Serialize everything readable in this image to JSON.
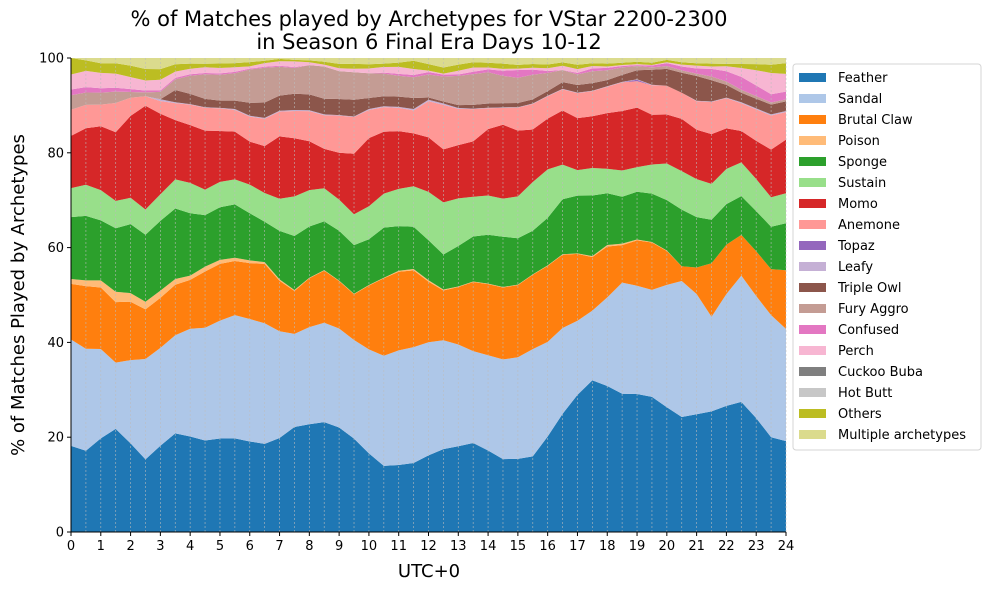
{
  "chart_data": {
    "type": "area",
    "title_line1": "% of Matches played by Archetypes for VStar 2200-2300",
    "title_line2": "in Season 6 Final Era Days 10-12",
    "xlabel": "UTC+0",
    "ylabel": "% of Matches Played by Archetypes",
    "xlim": [
      0,
      24
    ],
    "ylim": [
      0,
      100
    ],
    "x_ticks": [
      0,
      1,
      2,
      3,
      4,
      5,
      6,
      7,
      8,
      9,
      10,
      11,
      12,
      13,
      14,
      15,
      16,
      17,
      18,
      19,
      20,
      21,
      22,
      23,
      24
    ],
    "y_ticks": [
      0,
      20,
      40,
      60,
      80,
      100
    ],
    "grid": "vertical dotted",
    "legend_position": "right",
    "x": [
      0,
      0.5,
      1,
      1.5,
      2,
      2.5,
      3,
      3.5,
      4,
      4.5,
      5,
      5.5,
      6,
      6.5,
      7,
      7.5,
      8,
      8.5,
      9,
      9.5,
      10,
      10.5,
      11,
      11.5,
      12,
      12.5,
      13,
      13.5,
      14,
      14.5,
      15,
      15.5,
      16,
      16.5,
      17,
      17.5,
      18,
      18.5,
      19,
      19.5,
      20,
      20.5,
      21,
      21.5,
      22,
      22.5,
      23,
      23.5,
      24
    ],
    "series": [
      {
        "name": "Feather",
        "color": "#1f77b4",
        "values": [
          17.8,
          17,
          19.5,
          21.8,
          18.5,
          15.2,
          17.8,
          20.3,
          20.5,
          20.8,
          20.6,
          20.2,
          19.6,
          19,
          20.5,
          22,
          22.5,
          23.2,
          21.4,
          19,
          16.5,
          14,
          14.4,
          15,
          16.3,
          17.5,
          18.2,
          18.8,
          17.2,
          15.5,
          15.9,
          16.3,
          20.5,
          24.5,
          28.5,
          32,
          31,
          29.5,
          29.2,
          28.8,
          26.5,
          24.2,
          24.8,
          25.5,
          25.8,
          26.2,
          22.4,
          18.3,
          17.8
        ]
      },
      {
        "name": "Sandal",
        "color": "#aec7e8",
        "values": [
          22,
          21.3,
          18.6,
          14,
          17.4,
          21,
          20.2,
          20.2,
          23.1,
          25.6,
          26,
          26.6,
          26.5,
          26,
          23.3,
          19.5,
          20.3,
          21,
          20.3,
          20.1,
          21.8,
          23.3,
          24.6,
          25.2,
          24.1,
          23,
          21.6,
          19.4,
          20.1,
          21.2,
          22.1,
          23.1,
          20.3,
          17.8,
          15.4,
          14.7,
          18.8,
          23.7,
          22.9,
          22.8,
          26,
          28.6,
          25.3,
          20,
          22.9,
          25.4,
          24,
          23.6,
          22
        ]
      },
      {
        "name": "Brutal Claw",
        "color": "#ff7f0e",
        "values": [
          11.5,
          13.1,
          12.8,
          12.8,
          12.2,
          10.4,
          10.3,
          10.4,
          10.5,
          12.8,
          12.5,
          11.7,
          12.1,
          12.8,
          11,
          9,
          10.2,
          11,
          9.7,
          9.3,
          13.4,
          16.4,
          16.9,
          16.7,
          12.9,
          10.5,
          12.2,
          14.6,
          15,
          15.3,
          15.7,
          16,
          16.3,
          15.2,
          13.9,
          11.3,
          10.8,
          8,
          9.6,
          10.1,
          7.2,
          3.1,
          5.6,
          11.3,
          10.1,
          8.2,
          8.8,
          8.9,
          11.5
        ]
      },
      {
        "name": "Poison",
        "color": "#ffbb78",
        "values": [
          1,
          1.2,
          1.5,
          2.2,
          1.8,
          1.6,
          1.5,
          1.2,
          0.9,
          1.1,
          0.9,
          0.7,
          0.6,
          0.4,
          0.3,
          0.2,
          0.1,
          0.1,
          0.1,
          0.1,
          0.1,
          0.1,
          0.2,
          0.3,
          0.3,
          0.2,
          0.1,
          0.1,
          0.1,
          0.1,
          0.1,
          0.1,
          0.1,
          0.1,
          0.1,
          0.2,
          0.3,
          0.3,
          0.2,
          0.1,
          0.1,
          0,
          0,
          0,
          0,
          0,
          0,
          0,
          0
        ]
      },
      {
        "name": "Sponge",
        "color": "#2ca02c",
        "values": [
          12.8,
          13.5,
          12.5,
          13.4,
          14.4,
          14,
          14.4,
          14.5,
          13.4,
          11.7,
          11.6,
          11.5,
          10.2,
          8.7,
          10.6,
          11.3,
          10.7,
          10.3,
          10.2,
          9.9,
          9.6,
          10.6,
          9.6,
          9.2,
          8.5,
          7.4,
          8.6,
          9.5,
          10.3,
          10.7,
          10.1,
          9.4,
          10.2,
          11.4,
          12,
          12.8,
          11,
          10,
          10.1,
          10.3,
          10.7,
          11.9,
          10.6,
          9.2,
          8.3,
          7.8,
          7.9,
          8.2,
          9.2
        ]
      },
      {
        "name": "Sustain",
        "color": "#98df8a",
        "values": [
          6,
          6.5,
          6.3,
          5.8,
          5.5,
          5.3,
          5.5,
          6,
          6.5,
          5.8,
          5.6,
          5.4,
          6.2,
          6.2,
          7,
          8.3,
          7.6,
          7,
          6.4,
          6.3,
          6.9,
          7.2,
          8,
          8.8,
          10.3,
          11,
          10.1,
          8.4,
          8.3,
          8.1,
          9.1,
          10.5,
          10.4,
          7.2,
          5.3,
          5.8,
          5.2,
          5.6,
          5.2,
          6.2,
          7.8,
          8.1,
          8,
          7.6,
          7.2,
          6.8,
          6.3,
          5.7,
          5.9
        ]
      },
      {
        "name": "Momo",
        "color": "#d62728",
        "values": [
          10.8,
          11.8,
          13.3,
          14.5,
          17.1,
          21.7,
          16.6,
          12.2,
          12.4,
          13.4,
          11.2,
          10.3,
          9.3,
          10.1,
          13.6,
          12.2,
          10.2,
          8.3,
          9.6,
          12.3,
          14.3,
          13.1,
          12.4,
          11.5,
          11.6,
          11.2,
          11.3,
          11.7,
          14,
          15.7,
          14.3,
          11.3,
          10.9,
          11.2,
          10.8,
          10.9,
          11.8,
          12.7,
          12.6,
          10.6,
          10.4,
          11,
          10.4,
          10.5,
          8.3,
          6.3,
          7.5,
          9.2,
          10.5
        ]
      },
      {
        "name": "Anemone",
        "color": "#ff9896",
        "values": [
          5.4,
          4.9,
          4.5,
          6.2,
          3.8,
          2,
          2.6,
          3.5,
          4.4,
          5.2,
          5,
          4.7,
          5.4,
          5.9,
          5.4,
          5.7,
          6.3,
          7.1,
          7.6,
          7.5,
          5.9,
          5.2,
          5,
          5,
          7.7,
          9.4,
          7.7,
          6.8,
          4.4,
          3.6,
          5,
          5.5,
          4.8,
          4.4,
          5.2,
          5.3,
          5.6,
          6.1,
          5.6,
          6.3,
          6.1,
          5.5,
          6,
          6.8,
          6.2,
          5.6,
          6.2,
          6.6,
          5.4
        ]
      },
      {
        "name": "Topaz",
        "color": "#9467bd",
        "values": [
          0,
          0,
          0,
          0,
          0,
          0,
          0,
          0,
          0,
          0,
          0,
          0,
          0,
          0,
          0,
          0,
          0,
          0,
          0,
          0,
          0,
          0,
          0,
          0,
          0,
          0,
          0,
          0,
          0,
          0,
          0,
          0,
          0,
          0,
          0,
          0,
          0,
          0,
          0.3,
          0,
          0,
          0,
          0,
          0,
          0,
          0,
          0,
          0,
          0
        ]
      },
      {
        "name": "Leafy",
        "color": "#c5b0d5",
        "values": [
          0,
          0,
          0,
          0,
          0,
          0,
          0.4,
          0.2,
          0.1,
          0.1,
          0.1,
          0.2,
          0.2,
          0.2,
          0.2,
          0.2,
          0.2,
          0.2,
          0.1,
          0.1,
          0.2,
          0.2,
          0.2,
          0.3,
          0.3,
          0.3,
          0.2,
          0.1,
          0.1,
          0.1,
          0.1,
          0.1,
          0.1,
          0.1,
          0.1,
          0.1,
          0.1,
          0.1,
          0.1,
          0.1,
          0,
          0,
          0.1,
          0.1,
          0.1,
          0.2,
          0.2,
          0.2,
          0.2
        ]
      },
      {
        "name": "Triple Owl",
        "color": "#8c564b",
        "values": [
          0,
          0,
          0,
          0,
          0,
          0,
          0,
          2.5,
          2.2,
          1.9,
          1.6,
          1.8,
          2.8,
          3.3,
          3.3,
          3.4,
          3.3,
          3.3,
          3.3,
          3.4,
          2.3,
          2.1,
          2.2,
          2.4,
          0.5,
          0.4,
          0.6,
          0.8,
          0.9,
          0.9,
          0.9,
          0.9,
          1,
          1.4,
          1.6,
          1.6,
          1.3,
          1.5,
          1.9,
          3.2,
          3.6,
          4.2,
          5.2,
          4.5,
          2.6,
          1.9,
          1.9,
          1.9,
          1.9
        ]
      },
      {
        "name": "Fury Aggro",
        "color": "#c49c94",
        "values": [
          3,
          2.6,
          2.5,
          2.4,
          1.2,
          0.8,
          1.5,
          2.2,
          3.9,
          5.6,
          5.7,
          5.9,
          7.2,
          7.5,
          6.3,
          5.4,
          6.1,
          6.8,
          5.7,
          5.6,
          5.2,
          4.8,
          4.5,
          4.5,
          4.9,
          5.3,
          6.2,
          6.5,
          6.6,
          5.8,
          5.5,
          5.3,
          3.9,
          2.5,
          2.2,
          2.5,
          2.1,
          1.6,
          0.9,
          0.5,
          0.6,
          0.5,
          0.5,
          0.8,
          0.7,
          0.6,
          0.5,
          0.4,
          0.4
        ]
      },
      {
        "name": "Confused",
        "color": "#e377c2",
        "values": [
          1.2,
          1.1,
          0.9,
          0.8,
          0.6,
          0.4,
          0.3,
          0.3,
          0.3,
          0.3,
          0.3,
          0.3,
          0.2,
          0.2,
          0.2,
          0.2,
          0,
          0,
          0,
          0,
          0,
          0.2,
          0.4,
          0.5,
          0.5,
          0.4,
          0.3,
          0.5,
          0.6,
          1.1,
          1.7,
          1.1,
          0.4,
          0,
          0.3,
          0.6,
          0.5,
          0.3,
          0.2,
          0.4,
          0.6,
          0.8,
          1.1,
          1.6,
          2.1,
          2.6,
          2.1,
          1.6,
          1.5
        ]
      },
      {
        "name": "Perch",
        "color": "#f7b6d2",
        "values": [
          3.1,
          3.4,
          3.2,
          3,
          2.5,
          2.1,
          2.2,
          1.3,
          1.2,
          1.3,
          1.2,
          1,
          0.5,
          0.8,
          1,
          1.2,
          0.6,
          0.4,
          0.6,
          0.7,
          1,
          1.2,
          1.5,
          1.3,
          0.3,
          0.2,
          0.8,
          0.9,
          0.4,
          0.4,
          0.3,
          0.4,
          0.6,
          0.9,
          0.8,
          0.5,
          0.3,
          0.2,
          0.2,
          0.1,
          0.2,
          0.4,
          0.6,
          0.5,
          1,
          1.8,
          3,
          4.1,
          3.5
        ]
      },
      {
        "name": "Cuckoo Buba",
        "color": "#7f7f7f",
        "values": [
          0,
          0,
          0,
          0,
          0,
          0,
          0,
          0,
          0,
          0,
          0,
          0,
          0,
          0,
          0,
          0,
          0,
          0,
          0,
          0,
          0,
          0,
          0,
          0,
          0,
          0,
          0,
          0,
          0,
          0,
          0,
          0,
          0,
          0,
          0,
          0,
          0,
          0,
          0,
          0,
          0,
          0,
          0,
          0,
          0,
          0,
          0,
          0,
          0
        ]
      },
      {
        "name": "Hot Butt",
        "color": "#c7c7c7",
        "values": [
          0,
          0,
          0,
          0,
          0,
          0,
          0,
          0,
          0,
          0,
          0,
          0,
          0,
          0,
          0,
          0,
          0,
          0,
          0,
          0,
          0,
          0,
          0,
          0,
          0,
          0,
          0,
          0,
          0,
          0,
          0,
          0,
          0,
          0,
          0,
          0,
          0,
          0,
          0,
          0,
          0,
          0,
          0,
          0,
          0,
          0,
          0,
          0,
          0
        ]
      },
      {
        "name": "Others",
        "color": "#bcbd22",
        "values": [
          3.4,
          2.2,
          2,
          2.2,
          2.4,
          2.4,
          2.2,
          1.5,
          1.1,
          0.8,
          1,
          0.9,
          0.9,
          0.5,
          0.5,
          0.3,
          0.4,
          0.6,
          0.9,
          1,
          0.9,
          0.7,
          0.9,
          1.8,
          1.4,
          1.3,
          1.3,
          1.1,
          1,
          1.1,
          0.8,
          0.8,
          0.8,
          0.7,
          0.9,
          0.6,
          0.6,
          0.5,
          0.5,
          0.5,
          0.5,
          0.5,
          0.5,
          0.6,
          0.5,
          0.8,
          1.2,
          1.6,
          2.1
        ]
      },
      {
        "name": "Multiple archetypes",
        "color": "#dbdb8d",
        "values": [
          0,
          0.5,
          1.1,
          1.1,
          1.6,
          2.3,
          2.3,
          1.3,
          1.2,
          1.3,
          1.2,
          1.1,
          0.9,
          0.6,
          0.2,
          0.4,
          0.5,
          0.8,
          1.2,
          1.2,
          1.3,
          1.2,
          1,
          0.6,
          1.3,
          2.0,
          1.4,
          0.9,
          1,
          1.2,
          1.5,
          1.3,
          1.4,
          0.9,
          1.4,
          1.1,
          1.2,
          1,
          0.8,
          1,
          0.4,
          0.9,
          1.1,
          1.2,
          1.2,
          1.2,
          1.2,
          1.3,
          1
        ]
      }
    ]
  }
}
